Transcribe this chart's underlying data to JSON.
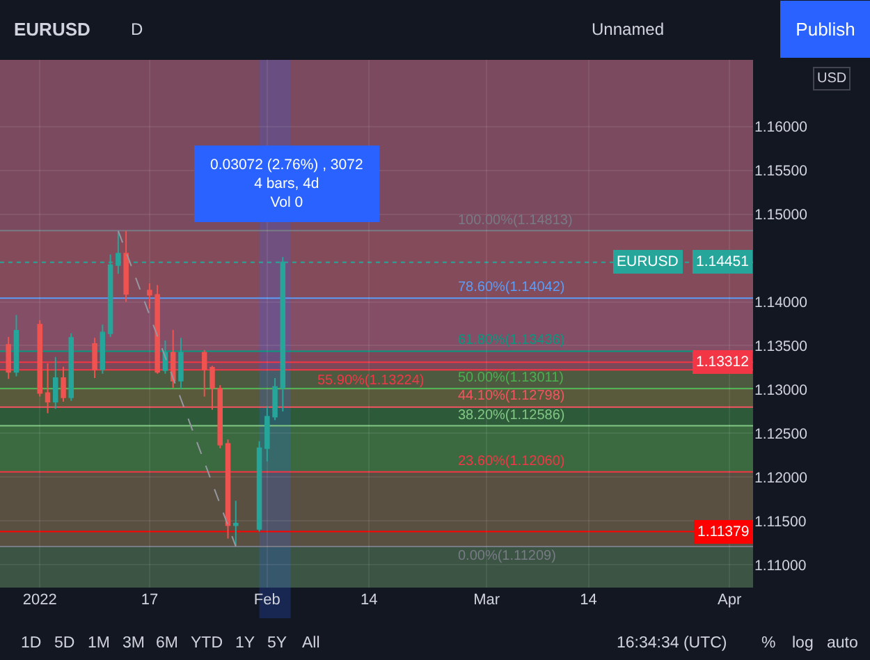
{
  "chart_data": {
    "type": "candlestick",
    "title": "EURUSD",
    "series": [
      {
        "name": "EURUSD",
        "x": [
          "2021-12-30",
          "2021-12-31",
          "2022-01-03",
          "2022-01-04",
          "2022-01-05",
          "2022-01-06",
          "2022-01-07",
          "2022-01-10",
          "2022-01-11",
          "2022-01-12",
          "2022-01-13",
          "2022-01-14",
          "2022-01-17",
          "2022-01-18",
          "2022-01-19",
          "2022-01-20",
          "2022-01-21",
          "2022-01-24",
          "2022-01-25",
          "2022-01-26",
          "2022-01-27",
          "2022-01-28",
          "2022-01-31",
          "2022-02-01",
          "2022-02-02",
          "2022-02-03"
        ],
        "ohlc": [
          [
            1.1351,
            1.136,
            1.1312,
            1.132
          ],
          [
            1.132,
            1.1385,
            1.1315,
            1.1367
          ],
          [
            1.1374,
            1.1379,
            1.1292,
            1.1296
          ],
          [
            1.1296,
            1.133,
            1.1273,
            1.1286
          ],
          [
            1.1286,
            1.1337,
            1.1278,
            1.1313
          ],
          [
            1.1313,
            1.1326,
            1.1286,
            1.1291
          ],
          [
            1.1291,
            1.1364,
            1.1287,
            1.1359
          ],
          [
            1.1352,
            1.1359,
            1.1313,
            1.1323
          ],
          [
            1.1323,
            1.1374,
            1.1318,
            1.1365
          ],
          [
            1.1364,
            1.1454,
            1.136,
            1.1442
          ],
          [
            1.1442,
            1.148,
            1.1432,
            1.1455
          ],
          [
            1.1455,
            1.1481,
            1.14,
            1.1409
          ],
          [
            1.1413,
            1.1421,
            1.1392,
            1.1408
          ],
          [
            1.1408,
            1.1419,
            1.1318,
            1.132
          ],
          [
            1.1322,
            1.1356,
            1.1318,
            1.1342
          ],
          [
            1.1342,
            1.1368,
            1.1302,
            1.131
          ],
          [
            1.131,
            1.1359,
            1.1301,
            1.1342
          ],
          [
            1.1342,
            1.1345,
            1.1292,
            1.1323
          ],
          [
            1.1325,
            1.1327,
            1.1277,
            1.1302
          ],
          [
            1.1301,
            1.1305,
            1.1233,
            1.1237
          ],
          [
            1.1238,
            1.1243,
            1.113,
            1.1145
          ],
          [
            1.1145,
            1.1173,
            1.1121,
            1.1147
          ],
          [
            1.1141,
            1.1241,
            1.1138,
            1.1233
          ],
          [
            1.1233,
            1.1281,
            1.1218,
            1.1269
          ],
          [
            1.1269,
            1.1313,
            1.1265,
            1.1303
          ],
          [
            1.1302,
            1.1451,
            1.1275,
            1.14451
          ]
        ],
        "colors": [
          "#ef5350",
          "#26a69a",
          "#ef5350",
          "#ef5350",
          "#26a69a",
          "#ef5350",
          "#26a69a",
          "#ef5350",
          "#26a69a",
          "#26a69a",
          "#26a69a",
          "#ef5350",
          "#ef5350",
          "#ef5350",
          "#26a69a",
          "#ef5350",
          "#26a69a",
          "#ef5350",
          "#ef5350",
          "#ef5350",
          "#ef5350",
          "#26a69a",
          "#26a69a",
          "#26a69a",
          "#26a69a",
          "#26a69a"
        ]
      },
      {
        "type": "line",
        "x": [
          "2022-01-13",
          "2022-01-28"
        ],
        "values": [
          1.1481,
          1.1121
        ],
        "color": "#9598a1",
        "line_style": "dashed"
      }
    ],
    "xlim": [
      "2021-12-28T22:00",
      "2022-04-04T00:00"
    ],
    "xticks": [
      {
        "value": "2022-01-03",
        "label": "2022"
      },
      {
        "value": "2022-01-17",
        "label": "17"
      },
      {
        "value": "2022-02-01",
        "label": "Feb"
      },
      {
        "value": "2022-02-14",
        "label": "14"
      },
      {
        "value": "2022-03-01",
        "label": "Mar"
      },
      {
        "value": "2022-03-14",
        "label": "14"
      },
      {
        "value": "2022-04-01",
        "label": "Apr"
      }
    ],
    "ylim": [
      1.1074,
      1.1676
    ],
    "yticks": [
      {
        "value": 1.11,
        "label": "1.11000"
      },
      {
        "value": 1.115,
        "label": "1.11500"
      },
      {
        "value": 1.12,
        "label": "1.12000"
      },
      {
        "value": 1.125,
        "label": "1.12500"
      },
      {
        "value": 1.13,
        "label": "1.13000"
      },
      {
        "value": 1.135,
        "label": "1.13500"
      },
      {
        "value": 1.14,
        "label": "1.14000"
      },
      {
        "value": 1.15,
        "label": "1.15000"
      },
      {
        "value": 1.155,
        "label": "1.15500"
      },
      {
        "value": 1.16,
        "label": "1.16000"
      }
    ],
    "grid": true,
    "bands": [
      {
        "axis": "y",
        "from": 1.14813,
        "to": 1.1676,
        "color": "#7b4a5e"
      },
      {
        "axis": "y",
        "from": 1.14042,
        "to": 1.14813,
        "color": "#844b5b"
      },
      {
        "axis": "y",
        "from": 1.13436,
        "to": 1.14042,
        "color": "#834e66"
      },
      {
        "axis": "y",
        "from": 1.13224,
        "to": 1.13436,
        "color": "#7b4859"
      },
      {
        "axis": "y",
        "from": 1.13011,
        "to": 1.13224,
        "color": "#4d5a40"
      },
      {
        "axis": "y",
        "from": 1.12798,
        "to": 1.13011,
        "color": "#585a3b"
      },
      {
        "axis": "y",
        "from": 1.12586,
        "to": 1.12798,
        "color": "#2d5a39"
      },
      {
        "axis": "y",
        "from": 1.1206,
        "to": 1.12586,
        "color": "#3b6a41"
      },
      {
        "axis": "y",
        "from": 1.11209,
        "to": 1.1206,
        "color": "#5a5042"
      },
      {
        "axis": "y",
        "from": 1.1074,
        "to": 1.11209,
        "color": "#3b5443"
      },
      {
        "axis": "x",
        "from": "2022-01-31",
        "to": "2022-02-04",
        "color": "#2962ff"
      }
    ],
    "ref_lines": [
      {
        "axis": "y",
        "value": 1.14813,
        "color": "#787b86"
      },
      {
        "axis": "y",
        "value": 1.14042,
        "color": "#5b9cf6"
      },
      {
        "axis": "y",
        "value": 1.13436,
        "color": "#089981"
      },
      {
        "axis": "y",
        "value": 1.13224,
        "color": "#f23645"
      },
      {
        "axis": "y",
        "value": 1.13011,
        "color": "#4caf50"
      },
      {
        "axis": "y",
        "value": 1.12798,
        "color": "#f7525f"
      },
      {
        "axis": "y",
        "value": 1.12586,
        "color": "#81c784"
      },
      {
        "axis": "y",
        "value": 1.1206,
        "color": "#f23645"
      },
      {
        "axis": "y",
        "value": 1.11209,
        "color": "#787b86"
      },
      {
        "axis": "y",
        "value": 1.14451,
        "label": "1.14451",
        "color": "#26a69a",
        "line_style": "dotted"
      },
      {
        "axis": "y",
        "value": 1.13312,
        "label": "1.13312",
        "color": "#f23645"
      },
      {
        "axis": "y",
        "value": 1.11379,
        "label": "1.11379",
        "color": "#ff0000"
      }
    ],
    "annotations": [
      "D",
      "Unnamed",
      "Publish",
      "USD",
      "1D",
      "5D",
      "1M",
      "3M",
      "6M",
      "YTD",
      "1Y",
      "5Y",
      "All",
      "16:34:34 (UTC)",
      "%",
      "log",
      "auto",
      "0.03072 (2.76%) , 3072\n4 bars, 4d\nVol 0",
      {
        "text": "100.00%(1.14813)",
        "x": "2022-02-25",
        "y": 1.14813
      },
      {
        "text": "78.60%(1.14042)",
        "x": "2022-02-25",
        "y": 1.14042
      },
      {
        "text": "61.80%(1.13436)",
        "x": "2022-02-25",
        "y": 1.13436
      },
      {
        "text": "55.90%(1.13224)",
        "x": "2022-02-07",
        "y": 1.13224
      },
      {
        "text": "50.00%(1.13011)",
        "x": "2022-02-25",
        "y": 1.13011
      },
      {
        "text": "44.10%(1.12798)",
        "x": "2022-02-25",
        "y": 1.12798
      },
      {
        "text": "38.20%(1.12586)",
        "x": "2022-02-25",
        "y": 1.12586
      },
      {
        "text": "23.60%(1.12060)",
        "x": "2022-02-25",
        "y": 1.1206
      },
      {
        "text": "0.00%(1.11209)",
        "x": "2022-02-25",
        "y": 1.11209
      }
    ]
  }
}
